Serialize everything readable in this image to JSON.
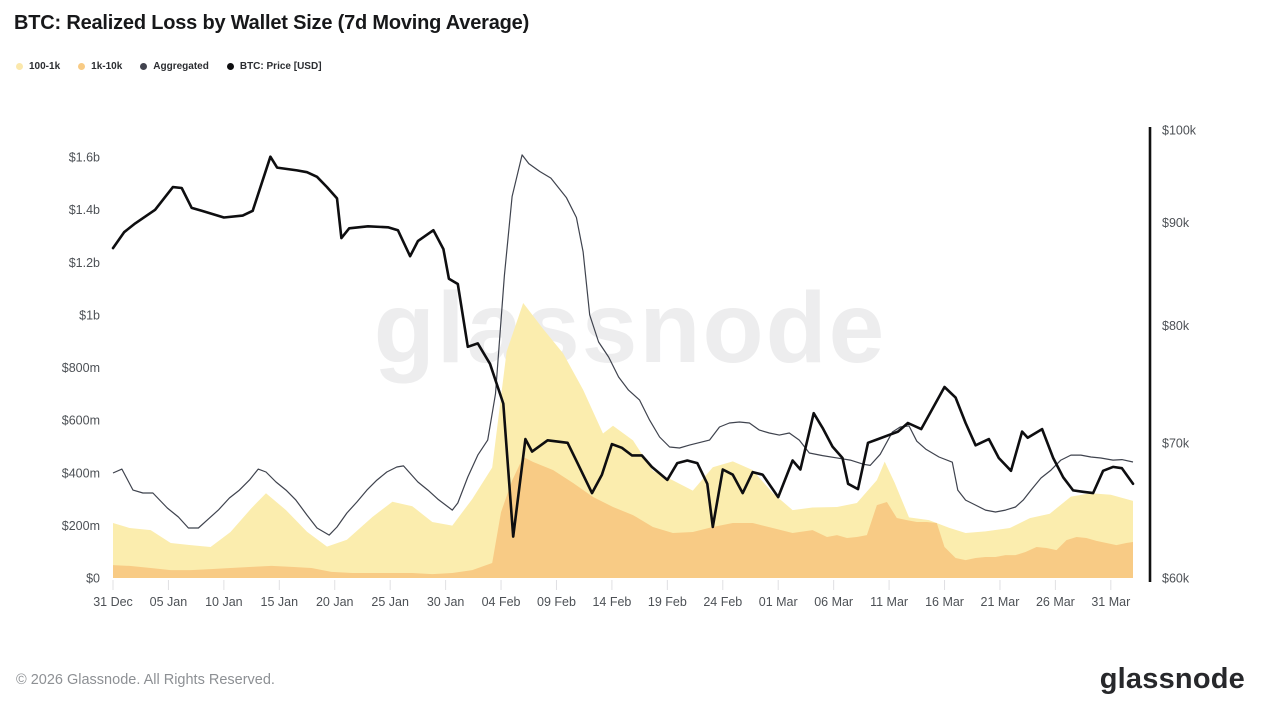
{
  "title": "BTC: Realized Loss by Wallet Size (7d Moving Average)",
  "watermark_text": "glassnode",
  "footer": {
    "copyright": "© 2026 Glassnode. All Rights Reserved.",
    "logo_text": "glassnode"
  },
  "colors": {
    "area_100_1k": "#FBEDAE",
    "area_1k_10k": "#F8CB85",
    "aggregated_line": "#3f434e",
    "price_line": "#0e0e10",
    "axis_text": "#4d5156",
    "tick_mark": "#e0e0e3",
    "right_axis_line": "#111111",
    "watermark": "#ededee",
    "footer_text": "#8d9094",
    "logo": "#27282b"
  },
  "legend": {
    "items": [
      {
        "label": "100-1k",
        "color": "#FBE8AC"
      },
      {
        "label": "1k-10k",
        "color": "#F8CB85"
      },
      {
        "label": "Aggregated",
        "color": "#41434e"
      },
      {
        "label": "BTC: Price [USD]",
        "color": "#0e0e10"
      }
    ]
  },
  "chart_data": {
    "type": "area+line",
    "title": "BTC: Realized Loss by Wallet Size (7d Moving Average)",
    "x_unit": "days since 31 Dec",
    "x_range": [
      0,
      92
    ],
    "x_ticks": {
      "days": [
        0,
        5,
        10,
        15,
        20,
        25,
        30,
        35,
        40,
        45,
        50,
        55,
        60,
        65,
        70,
        75,
        80,
        85,
        90
      ],
      "labels": [
        "31 Dec",
        "05 Jan",
        "10 Jan",
        "15 Jan",
        "20 Jan",
        "25 Jan",
        "30 Jan",
        "04 Feb",
        "09 Feb",
        "14 Feb",
        "19 Feb",
        "24 Feb",
        "01 Mar",
        "06 Mar",
        "11 Mar",
        "16 Mar",
        "21 Mar",
        "26 Mar",
        "31 Mar"
      ]
    },
    "left_axis": {
      "unit": "USD (realized loss, millions)",
      "scale": "linear",
      "range": [
        0,
        1703
      ],
      "tick_values": [
        0,
        200,
        400,
        600,
        800,
        1000,
        1200,
        1400,
        1600
      ],
      "tick_labels": [
        "$0",
        "$200m",
        "$400m",
        "$600m",
        "$800m",
        "$1b",
        "$1.2b",
        "$1.4b",
        "$1.6b"
      ]
    },
    "right_axis": {
      "unit": "BTC price, USD thousands",
      "scale": "log",
      "range": [
        60,
        100
      ],
      "tick_values": [
        60,
        70,
        80,
        90,
        100
      ],
      "tick_labels": [
        "$60k",
        "$70k",
        "$80k",
        "$90k",
        "$100k"
      ]
    },
    "grid": "off",
    "legend_position": "top-left",
    "series": [
      {
        "name": "100-1k",
        "type": "area",
        "axis": "left",
        "stacked": true,
        "stack_order": 1,
        "color": "#FBEDAE",
        "x": [
          0,
          1.5,
          3.4,
          5.2,
          7,
          8.8,
          10.6,
          12.5,
          13.8,
          15.6,
          17.5,
          19.3,
          21.1,
          23.4,
          25.2,
          27,
          28.8,
          30.6,
          32.4,
          34.2,
          35.5,
          37,
          38.8,
          40.6,
          42.4,
          44.2,
          45.1,
          46.9,
          48.7,
          50.5,
          52.3,
          54.1,
          55.9,
          57.7,
          59.5,
          61.3,
          63.1,
          65.3,
          67.1,
          68.9,
          69.6,
          70.5,
          71.8,
          73.6,
          75.4,
          76.9,
          78.7,
          80.9,
          82.7,
          84.5,
          86.4,
          88.2,
          90,
          92
        ],
        "y": [
          160,
          144,
          144,
          103,
          95,
          84,
          137,
          224,
          277,
          215,
          137,
          93,
          125,
          213,
          271,
          254,
          198,
          180,
          270,
          363,
          550,
          585,
          521,
          468,
          381,
          260,
          309,
          284,
          213,
          200,
          157,
          227,
          234,
          201,
          133,
          87,
          86,
          107,
          129,
          95,
          156,
          121,
          12,
          8,
          90,
          103,
          97,
          103,
          121,
          133,
          160,
          175,
          187,
          156
        ]
      },
      {
        "name": "1k-10k",
        "type": "area",
        "axis": "left",
        "stacked": true,
        "stack_order": 0,
        "color": "#F8CB85",
        "x": [
          0,
          1.5,
          3.4,
          5.2,
          7,
          8.8,
          10.6,
          12.5,
          14.3,
          16.1,
          17.9,
          19.7,
          21.6,
          23.4,
          25.2,
          27,
          28.8,
          30.6,
          32.4,
          34.2,
          35,
          36,
          37,
          37.9,
          39.7,
          41.5,
          43.3,
          45.1,
          46.9,
          48.7,
          50.5,
          52.3,
          54.1,
          55.9,
          57.7,
          59.5,
          61.3,
          63.1,
          64.4,
          65.3,
          66.2,
          67.1,
          68,
          68.9,
          69.8,
          70.7,
          71.6,
          72.5,
          73.4,
          74.3,
          75,
          76,
          76.9,
          77.8,
          78.7,
          79.6,
          80.5,
          81.4,
          82.3,
          83.3,
          84.2,
          85.1,
          86,
          86.9,
          87.8,
          88.7,
          89.6,
          90.5,
          91.4,
          92
        ],
        "y": [
          49,
          46,
          38,
          30,
          30,
          34,
          38,
          42,
          46,
          42,
          38,
          23,
          19,
          19,
          19,
          19,
          15,
          19,
          30,
          57,
          250,
          370,
          460,
          441,
          410,
          361,
          308,
          270,
          239,
          194,
          171,
          175,
          194,
          209,
          209,
          190,
          171,
          182,
          156,
          163,
          152,
          156,
          163,
          277,
          289,
          228,
          220,
          213,
          213,
          209,
          118,
          76,
          68,
          76,
          80,
          80,
          87,
          87,
          99,
          118,
          114,
          106,
          144,
          156,
          152,
          141,
          133,
          125,
          133,
          137
        ]
      },
      {
        "name": "Aggregated",
        "type": "line",
        "axis": "left",
        "color": "#3f434e",
        "width": 1.2,
        "x": [
          0,
          0.8,
          1.8,
          2.7,
          3.6,
          4.9,
          5.9,
          6.8,
          7.7,
          8.5,
          9.5,
          10.5,
          11.4,
          12.3,
          13.1,
          13.8,
          14.7,
          15.6,
          16.5,
          17.5,
          18.4,
          19.5,
          20.2,
          21.1,
          22,
          22.9,
          23.8,
          24.7,
          25.6,
          26.2,
          27.5,
          28.4,
          29.3,
          30.6,
          31.1,
          32,
          32.9,
          33.8,
          34.5,
          35.3,
          36,
          36.9,
          37.5,
          38.5,
          39.5,
          40.9,
          41.8,
          42.4,
          43,
          43.8,
          44.7,
          45.6,
          46.5,
          47.5,
          48.4,
          49.3,
          50.2,
          51.1,
          52,
          53.8,
          54.7,
          55.6,
          56.5,
          57.4,
          58.3,
          59.2,
          60.1,
          61,
          61.9,
          62.8,
          64,
          65.5,
          66.5,
          67.7,
          68.3,
          69.2,
          70.3,
          71,
          71.8,
          72.5,
          73.3,
          74.5,
          75.7,
          76.2,
          76.9,
          77.8,
          78.7,
          79.6,
          80.5,
          81.4,
          82.1,
          82.8,
          83.7,
          84.6,
          85.5,
          86.4,
          87.3,
          88.2,
          89.1,
          90.2,
          91,
          92
        ],
        "y": [
          399,
          414,
          334,
          323,
          323,
          266,
          232,
          190,
          190,
          220,
          258,
          304,
          334,
          372,
          414,
          403,
          365,
          334,
          296,
          239,
          190,
          163,
          194,
          247,
          289,
          334,
          372,
          403,
          422,
          426,
          365,
          334,
          300,
          258,
          285,
          384,
          467,
          524,
          700,
          1150,
          1450,
          1608,
          1575,
          1545,
          1520,
          1445,
          1370,
          1240,
          1000,
          897,
          840,
          764,
          714,
          676,
          600,
          536,
          498,
          494,
          505,
          524,
          574,
          589,
          593,
          589,
          562,
          551,
          543,
          551,
          524,
          475,
          465,
          455,
          448,
          432,
          428,
          470,
          555,
          574,
          578,
          520,
          490,
          460,
          440,
          334,
          296,
          277,
          258,
          251,
          258,
          270,
          296,
          334,
          380,
          410,
          448,
          467,
          467,
          460,
          456,
          448,
          450,
          441
        ]
      },
      {
        "name": "BTC: Price [USD]",
        "type": "line",
        "axis": "right",
        "color": "#0e0e10",
        "width": 2.6,
        "x": [
          0,
          1,
          2,
          3.8,
          5.4,
          6.2,
          7.1,
          8,
          10,
          11.7,
          12.6,
          14.2,
          14.8,
          16.6,
          17.5,
          18.4,
          19.3,
          20.2,
          20.6,
          21.3,
          23,
          24.8,
          25.7,
          26.8,
          27.5,
          28.9,
          29.8,
          30.3,
          31.1,
          32,
          32.9,
          34,
          35.2,
          36.1,
          37.2,
          37.8,
          39.2,
          41,
          41.9,
          43.2,
          44.1,
          45,
          45.9,
          46.8,
          47.7,
          48.6,
          50,
          50.9,
          51.8,
          52.7,
          53.6,
          54.1,
          55,
          55.9,
          56.8,
          57.7,
          58.6,
          60,
          61.3,
          62,
          63.2,
          64,
          64.9,
          65.8,
          66.3,
          67.2,
          68.1,
          69,
          70.8,
          71.7,
          72.9,
          75,
          76,
          76.9,
          77.8,
          79,
          79.9,
          81,
          82,
          82.5,
          83.8,
          84.8,
          85.7,
          86.6,
          87.5,
          88.4,
          89.3,
          90.2,
          91,
          92
        ],
        "y": [
          87.4,
          89.0,
          89.9,
          91.3,
          93.7,
          93.6,
          91.5,
          91.2,
          90.5,
          90.7,
          91.2,
          97.0,
          95.8,
          95.5,
          95.3,
          94.8,
          93.7,
          92.5,
          88.4,
          89.4,
          89.6,
          89.5,
          89.2,
          86.6,
          88.1,
          89.2,
          87.3,
          84.4,
          83.9,
          78.1,
          78.4,
          76.6,
          73.2,
          62.9,
          70.3,
          69.3,
          70.2,
          70.0,
          68.4,
          66.1,
          67.5,
          69.9,
          69.6,
          69.0,
          69.0,
          68.1,
          67.1,
          68.4,
          68.6,
          68.4,
          66.8,
          63.6,
          67.9,
          67.5,
          66.1,
          67.7,
          67.5,
          65.8,
          68.6,
          67.9,
          72.4,
          71.2,
          69.7,
          68.8,
          66.8,
          66.4,
          70.0,
          70.3,
          70.9,
          71.6,
          71.1,
          74.6,
          73.7,
          71.6,
          69.8,
          70.3,
          68.8,
          67.8,
          70.9,
          70.4,
          71.1,
          68.8,
          67.3,
          66.3,
          66.2,
          66.1,
          67.8,
          68.1,
          68.0,
          66.8
        ]
      }
    ]
  }
}
